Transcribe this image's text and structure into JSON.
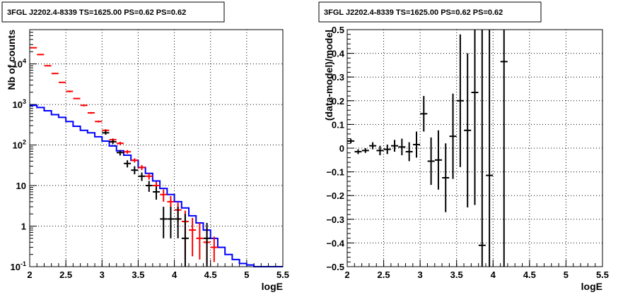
{
  "chart_data": [
    {
      "type": "histogram",
      "title": "3FGL J2202.4-8339 TS=1625.00 PS=0.62 PS=0.62",
      "xlabel": "logE",
      "ylabel": "Nb of counts",
      "xlim": [
        2,
        5.5
      ],
      "ylim": [
        0.1,
        70000
      ],
      "yscale": "log",
      "grid": true,
      "x_ticks": [
        "2",
        "2.5",
        "3",
        "3.5",
        "4",
        "4.5",
        "5",
        "5.5"
      ],
      "y_ticks": [
        "10^-1",
        "1",
        "10",
        "10^2",
        "10^3",
        "10^4"
      ],
      "bin_edges": [
        2.0,
        2.1,
        2.2,
        2.3,
        2.4,
        2.5,
        2.6,
        2.7,
        2.8,
        2.9,
        3.0,
        3.1,
        3.2,
        3.3,
        3.4,
        3.5,
        3.6,
        3.7,
        3.8,
        3.9,
        4.0,
        4.1,
        4.2,
        4.3,
        4.4,
        4.5,
        4.6,
        4.7,
        4.8,
        4.9,
        5.0,
        5.1,
        5.2,
        5.3,
        5.4,
        5.5
      ],
      "series": [
        {
          "color": "#0000ff",
          "style": "step",
          "values": [
            950,
            840,
            700,
            560,
            480,
            380,
            290,
            230,
            200,
            160,
            125,
            95,
            72,
            56,
            42,
            28,
            20,
            13,
            8.5,
            6,
            4,
            2.8,
            1.8,
            1.2,
            0.8,
            0.5,
            0.3,
            0.2,
            0.15,
            0.12,
            0.11,
            0.1,
            0.1,
            0.1,
            0.1
          ]
        },
        {
          "color": "#ff0000",
          "style": "errorbar",
          "points": [
            {
              "x": 2.05,
              "y": 25000,
              "lo": 24500,
              "hi": 25500
            },
            {
              "x": 2.15,
              "y": 17000,
              "lo": 16500,
              "hi": 17500
            },
            {
              "x": 2.25,
              "y": 9000,
              "lo": 8700,
              "hi": 9300
            },
            {
              "x": 2.35,
              "y": 5800,
              "lo": 5600,
              "hi": 6000
            },
            {
              "x": 2.45,
              "y": 3500,
              "lo": 3400,
              "hi": 3600
            },
            {
              "x": 2.55,
              "y": 2100,
              "lo": 2000,
              "hi": 2200
            },
            {
              "x": 2.65,
              "y": 1400,
              "lo": 1350,
              "hi": 1450
            },
            {
              "x": 2.75,
              "y": 950,
              "lo": 900,
              "hi": 1000
            },
            {
              "x": 2.85,
              "y": 620,
              "lo": 590,
              "hi": 650
            },
            {
              "x": 2.95,
              "y": 380,
              "lo": 360,
              "hi": 400
            },
            {
              "x": 3.05,
              "y": 230,
              "lo": 215,
              "hi": 245
            },
            {
              "x": 3.15,
              "y": 135,
              "lo": 125,
              "hi": 145
            },
            {
              "x": 3.25,
              "y": 110,
              "lo": 100,
              "hi": 120
            },
            {
              "x": 3.35,
              "y": 68,
              "lo": 61,
              "hi": 75
            },
            {
              "x": 3.45,
              "y": 42,
              "lo": 37,
              "hi": 47
            },
            {
              "x": 3.55,
              "y": 28,
              "lo": 24,
              "hi": 32
            },
            {
              "x": 3.65,
              "y": 17,
              "lo": 14,
              "hi": 20
            },
            {
              "x": 3.75,
              "y": 10,
              "lo": 7.5,
              "hi": 12.5
            },
            {
              "x": 3.85,
              "y": 6,
              "lo": 4,
              "hi": 8
            },
            {
              "x": 3.95,
              "y": 4,
              "lo": 2.5,
              "hi": 5.5
            },
            {
              "x": 4.05,
              "y": 2.5,
              "lo": 1.2,
              "hi": 3.8
            },
            {
              "x": 4.15,
              "y": 1.3,
              "lo": 0.15,
              "hi": 2.4
            },
            {
              "x": 4.25,
              "y": 0.8,
              "lo": 0.18,
              "hi": 1.6
            },
            {
              "x": 4.35,
              "y": 0.5,
              "lo": 0.15,
              "hi": 1.2
            },
            {
              "x": 4.45,
              "y": 0.4,
              "lo": 0.12,
              "hi": 0.9
            },
            {
              "x": 4.55,
              "y": 0.3,
              "lo": 0.13,
              "hi": 0.55
            }
          ]
        },
        {
          "color": "#000000",
          "style": "errorbar",
          "points": [
            {
              "x": 3.05,
              "y": 200,
              "lo": 180,
              "hi": 230
            },
            {
              "x": 3.15,
              "y": 120,
              "lo": 105,
              "hi": 135
            },
            {
              "x": 3.25,
              "y": 65,
              "lo": 55,
              "hi": 75
            },
            {
              "x": 3.35,
              "y": 35,
              "lo": 28,
              "hi": 42
            },
            {
              "x": 3.45,
              "y": 24,
              "lo": 19,
              "hi": 30
            },
            {
              "x": 3.55,
              "y": 17,
              "lo": 13,
              "hi": 21
            },
            {
              "x": 3.65,
              "y": 10,
              "lo": 7,
              "hi": 13
            },
            {
              "x": 3.75,
              "y": 7,
              "lo": 4.5,
              "hi": 9.5
            },
            {
              "x": 3.85,
              "y": 1.5,
              "lo": 0.5,
              "hi": 3
            },
            {
              "x": 3.95,
              "y": 1.5,
              "lo": 0.5,
              "hi": 3
            },
            {
              "x": 4.05,
              "y": 1.5,
              "lo": 0.5,
              "hi": 3
            },
            {
              "x": 4.15,
              "y": 0.5,
              "lo": 0.1,
              "hi": 2
            },
            {
              "x": 4.45,
              "y": 0.5,
              "lo": 0.1,
              "hi": 1.2
            }
          ]
        }
      ]
    },
    {
      "type": "scatter",
      "title": "3FGL J2202.4-8339 TS=1625.00 PS=0.62 PS=0.62",
      "xlabel": "logE",
      "ylabel": "(data-model)/model",
      "xlim": [
        2,
        5.5
      ],
      "ylim": [
        -0.5,
        0.5
      ],
      "grid": true,
      "x_ticks": [
        "2",
        "2.5",
        "3",
        "3.5",
        "4",
        "4.5",
        "5",
        "5.5"
      ],
      "y_ticks": [
        "−0.5",
        "−0.4",
        "−0.3",
        "−0.2",
        "−0.1",
        "0",
        "0.1",
        "0.2",
        "0.3",
        "0.4",
        "0.5"
      ],
      "y_tick_values": [
        -0.5,
        -0.4,
        -0.3,
        -0.2,
        -0.1,
        0,
        0.1,
        0.2,
        0.3,
        0.4,
        0.5
      ],
      "series": [
        {
          "color": "#000000",
          "style": "errorbar",
          "points": [
            {
              "x": 2.05,
              "y": 0.03,
              "lo": 0.02,
              "hi": 0.04
            },
            {
              "x": 2.15,
              "y": -0.015,
              "lo": -0.025,
              "hi": -0.005
            },
            {
              "x": 2.25,
              "y": -0.01,
              "lo": -0.02,
              "hi": 0.0
            },
            {
              "x": 2.35,
              "y": 0.01,
              "lo": -0.005,
              "hi": 0.025
            },
            {
              "x": 2.45,
              "y": -0.01,
              "lo": -0.03,
              "hi": 0.01
            },
            {
              "x": 2.55,
              "y": -0.005,
              "lo": -0.025,
              "hi": 0.015
            },
            {
              "x": 2.65,
              "y": 0.01,
              "lo": -0.015,
              "hi": 0.035
            },
            {
              "x": 2.75,
              "y": 0.005,
              "lo": -0.03,
              "hi": 0.04
            },
            {
              "x": 2.85,
              "y": -0.015,
              "lo": -0.055,
              "hi": 0.025
            },
            {
              "x": 2.95,
              "y": 0.015,
              "lo": -0.04,
              "hi": 0.07
            },
            {
              "x": 3.05,
              "y": 0.145,
              "lo": 0.07,
              "hi": 0.22
            },
            {
              "x": 3.15,
              "y": -0.055,
              "lo": -0.155,
              "hi": 0.045
            },
            {
              "x": 3.25,
              "y": -0.05,
              "lo": -0.175,
              "hi": 0.075
            },
            {
              "x": 3.35,
              "y": -0.125,
              "lo": -0.27,
              "hi": 0.02
            },
            {
              "x": 3.45,
              "y": 0.05,
              "lo": -0.13,
              "hi": 0.23
            },
            {
              "x": 3.55,
              "y": 0.2,
              "lo": -0.08,
              "hi": 0.48
            },
            {
              "x": 3.65,
              "y": 0.075,
              "lo": -0.25,
              "hi": 0.4
            },
            {
              "x": 3.75,
              "y": 0.235,
              "lo": -0.24,
              "hi": 0.5
            },
            {
              "x": 3.85,
              "y": -0.41,
              "lo": -0.5,
              "hi": 0.5
            },
            {
              "x": 3.95,
              "y": -0.115,
              "lo": -0.5,
              "hi": 0.5
            },
            {
              "x": 4.15,
              "y": 0.365,
              "lo": -0.5,
              "hi": 0.5
            }
          ]
        }
      ]
    }
  ]
}
